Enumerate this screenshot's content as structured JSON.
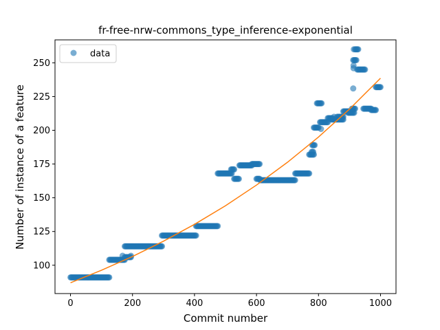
{
  "chart_data": {
    "type": "scatter",
    "title": "fr-free-nrw-commons_type_inference-exponential",
    "xlabel": "Commit number",
    "ylabel": "Number of instance of a feature",
    "xlim": [
      -50,
      1050
    ],
    "ylim": [
      79,
      267
    ],
    "xticks": [
      0,
      200,
      400,
      600,
      800,
      1000
    ],
    "yticks": [
      100,
      125,
      150,
      175,
      200,
      225,
      250
    ],
    "grid": false,
    "legend": {
      "position": "top-left",
      "entries": [
        "data"
      ]
    },
    "colors": {
      "data": "#1f77b4",
      "fit": "#ff7f0e"
    },
    "series": [
      {
        "name": "data",
        "kind": "scatter",
        "segments": [
          {
            "x_start": 0,
            "x_end": 125,
            "y": 91
          },
          {
            "x_start": 125,
            "x_end": 175,
            "y": 104
          },
          {
            "x_start": 175,
            "x_end": 195,
            "y": 106
          },
          {
            "x_start": 175,
            "x_end": 295,
            "y": 114
          },
          {
            "x_start": 295,
            "x_end": 405,
            "y": 122
          },
          {
            "x_start": 405,
            "x_end": 475,
            "y": 129
          },
          {
            "x_start": 475,
            "x_end": 520,
            "y": 168
          },
          {
            "x_start": 518,
            "x_end": 530,
            "y": 171
          },
          {
            "x_start": 528,
            "x_end": 545,
            "y": 164
          },
          {
            "x_start": 545,
            "x_end": 585,
            "y": 174
          },
          {
            "x_start": 585,
            "x_end": 612,
            "y": 175
          },
          {
            "x_start": 600,
            "x_end": 612,
            "y": 164
          },
          {
            "x_start": 612,
            "x_end": 725,
            "y": 163
          },
          {
            "x_start": 725,
            "x_end": 770,
            "y": 168
          },
          {
            "x_start": 770,
            "x_end": 785,
            "y": 182
          },
          {
            "x_start": 778,
            "x_end": 785,
            "y": 184
          },
          {
            "x_start": 780,
            "x_end": 788,
            "y": 189
          },
          {
            "x_start": 785,
            "x_end": 800,
            "y": 202
          },
          {
            "x_start": 795,
            "x_end": 810,
            "y": 220
          },
          {
            "x_start": 805,
            "x_end": 830,
            "y": 206
          },
          {
            "x_start": 830,
            "x_end": 845,
            "y": 209
          },
          {
            "x_start": 840,
            "x_end": 880,
            "y": 208
          },
          {
            "x_start": 860,
            "x_end": 880,
            "y": 210
          },
          {
            "x_start": 880,
            "x_end": 905,
            "y": 214
          },
          {
            "x_start": 895,
            "x_end": 915,
            "y": 213
          },
          {
            "x_start": 908,
            "x_end": 918,
            "y": 216
          },
          {
            "x_start": 912,
            "x_end": 922,
            "y": 252
          },
          {
            "x_start": 918,
            "x_end": 930,
            "y": 260
          },
          {
            "x_start": 925,
            "x_end": 950,
            "y": 245
          },
          {
            "x_start": 945,
            "x_end": 970,
            "y": 216
          },
          {
            "x_start": 970,
            "x_end": 985,
            "y": 215
          },
          {
            "x_start": 985,
            "x_end": 1000,
            "y": 232
          }
        ],
        "points": [
          [
            808,
            201
          ],
          [
            912,
            231
          ],
          [
            913,
            246
          ],
          [
            913,
            248
          ],
          [
            914,
            260
          ],
          [
            168,
            107
          ],
          [
            195,
            107
          ],
          [
            850,
            210
          ]
        ]
      },
      {
        "name": "",
        "kind": "line",
        "x": [
          0,
          100,
          200,
          300,
          400,
          500,
          600,
          700,
          800,
          900,
          1000
        ],
        "y": [
          87,
          96.3,
          106.5,
          117.8,
          130.3,
          144.1,
          159.4,
          176.3,
          195.0,
          215.7,
          238.6
        ]
      }
    ]
  }
}
